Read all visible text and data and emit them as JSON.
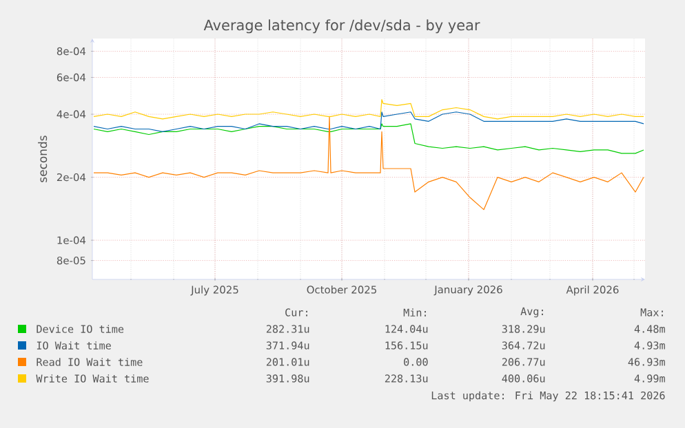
{
  "chart_data": {
    "type": "line",
    "title": "Average latency for /dev/sda - by year",
    "ylabel": "seconds",
    "x": [
      "2025-04-04",
      "2025-04-14",
      "2025-04-24",
      "2025-05-04",
      "2025-05-14",
      "2025-05-24",
      "2025-06-03",
      "2025-06-13",
      "2025-06-23",
      "2025-07-03",
      "2025-07-13",
      "2025-07-23",
      "2025-08-02",
      "2025-08-12",
      "2025-08-22",
      "2025-09-01",
      "2025-09-11",
      "2025-09-21",
      "2025-09-22",
      "2025-09-23",
      "2025-10-01",
      "2025-10-11",
      "2025-10-21",
      "2025-10-29",
      "2025-10-30",
      "2025-10-31",
      "2025-11-10",
      "2025-11-20",
      "2025-11-23",
      "2025-12-03",
      "2025-12-13",
      "2025-12-23",
      "2026-01-02",
      "2026-01-12",
      "2026-01-22",
      "2026-02-01",
      "2026-02-11",
      "2026-02-21",
      "2026-03-03",
      "2026-03-13",
      "2026-03-23",
      "2026-04-02",
      "2026-04-12",
      "2026-04-22",
      "2026-05-02",
      "2026-05-08"
    ],
    "series": [
      {
        "name": "Device IO time",
        "color": "#00cc00",
        "values": [
          0.00034,
          0.00033,
          0.00034,
          0.00033,
          0.00032,
          0.00033,
          0.00033,
          0.00034,
          0.00034,
          0.00034,
          0.00033,
          0.00034,
          0.00035,
          0.00035,
          0.00034,
          0.00034,
          0.00034,
          0.00033,
          0.00033,
          0.00033,
          0.00034,
          0.00034,
          0.00034,
          0.00034,
          0.00036,
          0.00035,
          0.00035,
          0.00036,
          0.00029,
          0.00028,
          0.000275,
          0.00028,
          0.000275,
          0.00028,
          0.00027,
          0.000275,
          0.00028,
          0.00027,
          0.000275,
          0.00027,
          0.000265,
          0.00027,
          0.00027,
          0.00026,
          0.00026,
          0.00027
        ]
      },
      {
        "name": "IO Wait time",
        "color": "#0066b3",
        "values": [
          0.00035,
          0.00034,
          0.00035,
          0.00034,
          0.00034,
          0.00033,
          0.00034,
          0.00035,
          0.00034,
          0.00035,
          0.00035,
          0.00034,
          0.00036,
          0.00035,
          0.00035,
          0.00034,
          0.00035,
          0.00034,
          0.00034,
          0.00034,
          0.00035,
          0.00034,
          0.00035,
          0.00034,
          0.00041,
          0.00039,
          0.0004,
          0.00041,
          0.00038,
          0.00037,
          0.0004,
          0.00041,
          0.0004,
          0.00037,
          0.00037,
          0.00037,
          0.00037,
          0.00037,
          0.00037,
          0.00038,
          0.00037,
          0.00037,
          0.00037,
          0.00037,
          0.00037,
          0.00036
        ]
      },
      {
        "name": "Read IO Wait time",
        "color": "#ff8000",
        "values": [
          0.00021,
          0.00021,
          0.000205,
          0.00021,
          0.0002,
          0.00021,
          0.000205,
          0.00021,
          0.0002,
          0.00021,
          0.00021,
          0.000205,
          0.000215,
          0.00021,
          0.00021,
          0.00021,
          0.000215,
          0.00021,
          0.00039,
          0.00021,
          0.000215,
          0.00021,
          0.00021,
          0.00021,
          0.00033,
          0.00022,
          0.00022,
          0.00022,
          0.00017,
          0.00019,
          0.0002,
          0.00019,
          0.00016,
          0.00014,
          0.0002,
          0.00019,
          0.0002,
          0.00019,
          0.00021,
          0.0002,
          0.00019,
          0.0002,
          0.00019,
          0.00021,
          0.00017,
          0.0002
        ]
      },
      {
        "name": "Write IO Wait time",
        "color": "#ffcc00",
        "values": [
          0.00039,
          0.0004,
          0.00039,
          0.00041,
          0.00039,
          0.00038,
          0.00039,
          0.0004,
          0.00039,
          0.0004,
          0.00039,
          0.0004,
          0.0004,
          0.00041,
          0.0004,
          0.00039,
          0.0004,
          0.00039,
          0.00039,
          0.00039,
          0.0004,
          0.00039,
          0.0004,
          0.00039,
          0.00047,
          0.00045,
          0.00044,
          0.00045,
          0.00039,
          0.00039,
          0.00042,
          0.00043,
          0.00042,
          0.00039,
          0.00038,
          0.00039,
          0.00039,
          0.00039,
          0.00039,
          0.0004,
          0.00039,
          0.0004,
          0.00039,
          0.0004,
          0.00039,
          0.00039
        ]
      }
    ],
    "xlim": [
      "2025-04-03",
      "2026-05-09"
    ],
    "xticks": [
      {
        "value": "2025-07-01",
        "label": "July 2025"
      },
      {
        "value": "2025-10-01",
        "label": "October 2025"
      },
      {
        "value": "2026-01-01",
        "label": "January 2026"
      },
      {
        "value": "2026-04-01",
        "label": "April 2026"
      }
    ],
    "ylim": [
      6.5e-05,
      0.00092
    ],
    "yticks": [
      {
        "value": 8e-05,
        "label": "8e-05"
      },
      {
        "value": 0.0001,
        "label": "1e-04"
      },
      {
        "value": 0.0002,
        "label": "2e-04"
      },
      {
        "value": 0.0004,
        "label": "4e-04"
      },
      {
        "value": 0.0006,
        "label": "6e-04"
      },
      {
        "value": 0.0008,
        "label": "8e-04"
      }
    ],
    "log": "y",
    "grid": true,
    "legend": "bottom",
    "line_style": "solid",
    "annotations": [
      "Cur:",
      "Min:",
      "Avg:",
      "Max:",
      "282.31u",
      "124.04u",
      "318.29u",
      "4.48m",
      "371.94u",
      "156.15u",
      "364.72u",
      "4.93m",
      "201.01u",
      "0.00",
      "206.77u",
      "46.93m",
      "391.98u",
      "228.13u",
      "400.06u",
      "4.99m",
      "Last update: Fri May 22 18:15:41 2026"
    ]
  }
}
